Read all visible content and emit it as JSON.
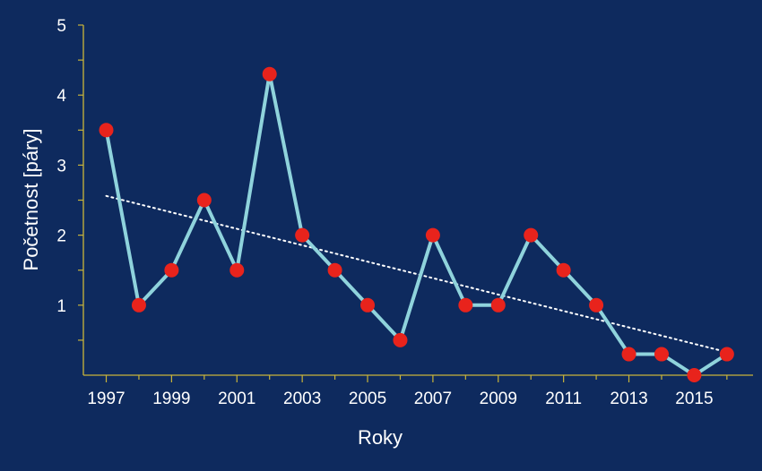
{
  "colors": {
    "background": "#0e2a5e",
    "axis": "#c9b43a",
    "line": "#8fd3dc",
    "marker": "#e8231c",
    "trend": "#ffffff",
    "text": "#ffffff"
  },
  "chart_data": {
    "type": "line",
    "title": "",
    "xlabel": "Roky",
    "ylabel": "Početnost [páry]",
    "xlim": [
      1996.3,
      2016.8
    ],
    "ylim": [
      0,
      5
    ],
    "x_ticks": [
      1997,
      1999,
      2001,
      2003,
      2005,
      2007,
      2009,
      2011,
      2013,
      2015
    ],
    "x_tick_labels": [
      "1997",
      "1999",
      "2001",
      "2003",
      "2005",
      "2007",
      "2009",
      "2011",
      "2013",
      "2015"
    ],
    "y_ticks": [
      1,
      2,
      3,
      4,
      5
    ],
    "y_tick_labels": [
      "1",
      "2",
      "3",
      "4",
      "5"
    ],
    "grid": false,
    "legend": "none",
    "series": [
      {
        "x": [
          1997,
          1998,
          1999,
          2000,
          2001,
          2002,
          2003,
          2004,
          2005,
          2006,
          2007,
          2008,
          2009,
          2010,
          2011,
          2012,
          2013,
          2014,
          2015,
          2016
        ],
        "values": [
          3.5,
          1.0,
          1.5,
          2.5,
          1.5,
          4.3,
          2.0,
          1.5,
          1.0,
          0.5,
          2.0,
          1.0,
          1.0,
          2.0,
          1.5,
          1.0,
          0.3,
          0.3,
          0.0,
          0.3
        ]
      }
    ],
    "trendline": {
      "style": "dotted",
      "x": [
        1997,
        2016
      ],
      "values": [
        2.56,
        0.33
      ]
    }
  }
}
